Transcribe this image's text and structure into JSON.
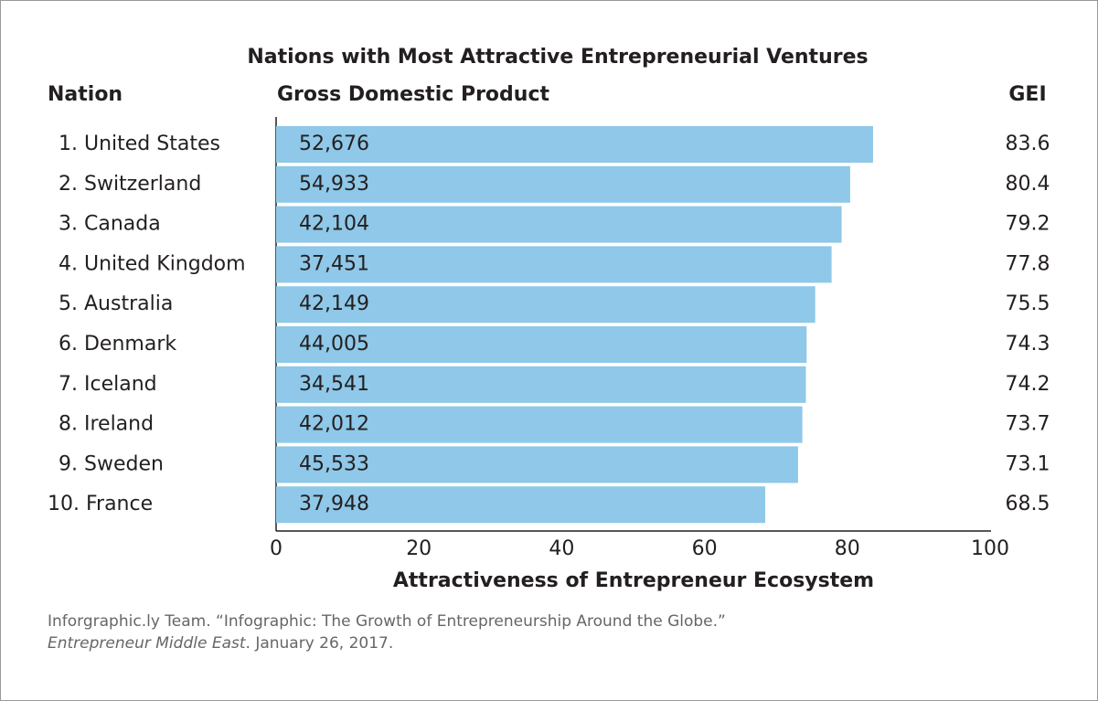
{
  "chart_data": {
    "type": "bar",
    "title": "Nations with Most Attractive Entrepreneurial Ventures",
    "category_header": "Nation",
    "gdp_header": "Gross Domestic Product",
    "value_header": "GEI",
    "categories": [
      "1. United States",
      "2. Switzerland",
      "3. Canada",
      "4. United Kingdom",
      "5. Australia",
      "6. Denmark",
      "7. Iceland",
      "8. Ireland",
      "9. Sweden",
      "10. France"
    ],
    "values": [
      83.6,
      80.4,
      79.2,
      77.8,
      75.5,
      74.3,
      74.2,
      73.7,
      73.1,
      68.5
    ],
    "color": "#8fc8e8",
    "gdp": {
      "values": [
        52676,
        54933,
        42104,
        37451,
        42149,
        44005,
        34541,
        42012,
        45533,
        37948
      ],
      "value_labels": [
        "52,676",
        "54,933",
        "42,104",
        "37,451",
        "42,149",
        "44,005",
        "34,541",
        "42,012",
        "45,533",
        "37,948"
      ]
    },
    "xlim": [
      0,
      100
    ],
    "xticks": [
      0,
      20,
      40,
      60,
      80,
      100
    ],
    "xlabel": "Attractiveness of Entrepreneur Ecosystem",
    "source": {
      "line1": "Inforgraphic.ly Team. “Infographic: The Growth of Entrepreneurship Around the Globe.”",
      "publication": "Entrepreneur Middle East",
      "date": ". January 26, 2017."
    }
  }
}
